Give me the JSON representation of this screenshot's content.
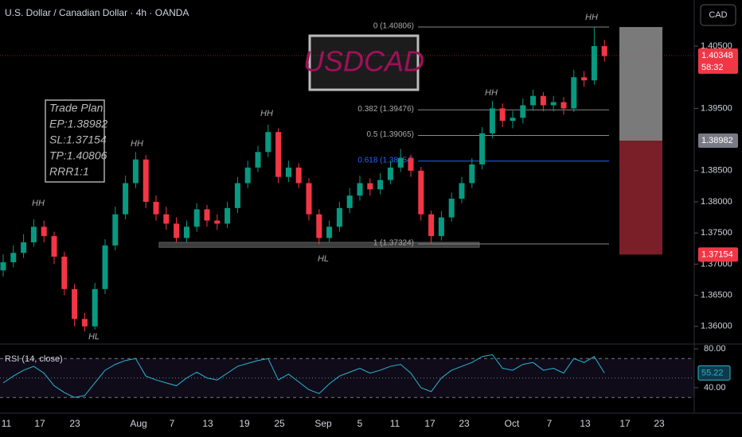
{
  "chart_data": {
    "type": "candlestick",
    "title": "U.S. Dollar / Canadian Dollar · 4h · OANDA",
    "symbol": "USDCAD",
    "currency": "CAD",
    "x_labels": [
      "11",
      "17",
      "23",
      "Aug",
      "7",
      "13",
      "19",
      "25",
      "Sep",
      "5",
      "11",
      "17",
      "23",
      "Oct",
      "7",
      "13",
      "17",
      "23"
    ],
    "open": [
      1.369,
      1.3703,
      1.3718,
      1.3735,
      1.376,
      1.3745,
      1.3712,
      1.366,
      1.3612,
      1.36,
      1.366,
      1.373,
      1.378,
      1.383,
      1.3868,
      1.38,
      1.378,
      1.3765,
      1.3742,
      1.376,
      1.3788,
      1.377,
      1.3765,
      1.379,
      1.383,
      1.3855,
      1.388,
      1.3912,
      1.384,
      1.3855,
      1.383,
      1.378,
      1.3742,
      1.376,
      1.379,
      1.381,
      1.383,
      1.382,
      1.3835,
      1.3855,
      1.387,
      1.385,
      1.378,
      1.3745,
      1.3775,
      1.3805,
      1.383,
      1.386,
      1.391,
      1.395,
      1.393,
      1.3935,
      1.3955,
      1.397,
      1.3955,
      1.396,
      1.395,
      1.4,
      1.3995,
      1.405
    ],
    "high": [
      1.3716,
      1.373,
      1.3748,
      1.3772,
      1.377,
      1.3752,
      1.372,
      1.3668,
      1.3622,
      1.367,
      1.374,
      1.3792,
      1.3842,
      1.388,
      1.3875,
      1.381,
      1.3792,
      1.3775,
      1.377,
      1.3798,
      1.3795,
      1.378,
      1.38,
      1.384,
      1.3866,
      1.389,
      1.3924,
      1.3918,
      1.3866,
      1.3862,
      1.3838,
      1.3788,
      1.377,
      1.38,
      1.3822,
      1.3842,
      1.3838,
      1.3846,
      1.3866,
      1.3885,
      1.3876,
      1.3856,
      1.3786,
      1.3785,
      1.3815,
      1.384,
      1.387,
      1.392,
      1.3962,
      1.3958,
      1.3946,
      1.3966,
      1.398,
      1.3976,
      1.397,
      1.3968,
      1.4012,
      1.401,
      1.4081,
      1.406
    ],
    "low": [
      1.368,
      1.3695,
      1.371,
      1.3728,
      1.3735,
      1.37,
      1.365,
      1.36,
      1.3592,
      1.3595,
      1.3652,
      1.3722,
      1.3772,
      1.3822,
      1.379,
      1.377,
      1.3755,
      1.3735,
      1.3735,
      1.3752,
      1.376,
      1.3755,
      1.3758,
      1.3782,
      1.3822,
      1.3848,
      1.3872,
      1.383,
      1.3832,
      1.3822,
      1.377,
      1.3732,
      1.3735,
      1.3752,
      1.3782,
      1.3802,
      1.381,
      1.3812,
      1.3828,
      1.3848,
      1.384,
      1.377,
      1.3732,
      1.3738,
      1.3768,
      1.3798,
      1.3822,
      1.3852,
      1.3902,
      1.392,
      1.3918,
      1.3926,
      1.3946,
      1.3945,
      1.3945,
      1.394,
      1.3944,
      1.3985,
      1.3988,
      1.4025
    ],
    "close": [
      1.3703,
      1.3718,
      1.3735,
      1.376,
      1.3745,
      1.3712,
      1.366,
      1.3612,
      1.36,
      1.366,
      1.373,
      1.378,
      1.383,
      1.3868,
      1.38,
      1.378,
      1.3765,
      1.3742,
      1.376,
      1.3788,
      1.377,
      1.3765,
      1.379,
      1.383,
      1.3855,
      1.388,
      1.3912,
      1.384,
      1.3855,
      1.383,
      1.378,
      1.3742,
      1.376,
      1.379,
      1.381,
      1.383,
      1.382,
      1.3835,
      1.3855,
      1.387,
      1.385,
      1.378,
      1.3745,
      1.3775,
      1.3805,
      1.383,
      1.386,
      1.391,
      1.395,
      1.393,
      1.3935,
      1.3955,
      1.397,
      1.3955,
      1.396,
      1.395,
      1.4,
      1.3995,
      1.405,
      1.4034
    ],
    "up_color": "#089981",
    "down_color": "#f23645",
    "ylim": [
      1.3573,
      1.4124
    ],
    "yticks": [
      {
        "value": 1.405,
        "label": "1.40500"
      },
      {
        "value": 1.395,
        "label": "1.39500"
      },
      {
        "value": 1.385,
        "label": "1.38500"
      },
      {
        "value": 1.38,
        "label": "1.38000"
      },
      {
        "value": 1.375,
        "label": "1.37500"
      },
      {
        "value": 1.37,
        "label": "1.37000"
      },
      {
        "value": 1.365,
        "label": "1.36500"
      },
      {
        "value": 1.36,
        "label": "1.36000"
      }
    ],
    "last_price": 1.40348,
    "countdown": "58:32",
    "fib": [
      {
        "label": "0 (1.40806)",
        "value": 1.40806
      },
      {
        "label": "0.382 (1.39476)",
        "value": 1.39476
      },
      {
        "label": "0.5 (1.39065)",
        "value": 1.39065
      },
      {
        "label": "0.618 (1.38654)",
        "value": 1.38654
      },
      {
        "label": "1 (1.37324)",
        "value": 1.37324
      }
    ],
    "support_zone": [
      1.3727,
      1.3735
    ],
    "trade": {
      "lines": [
        "Trade Plan.",
        "EP:1.38982",
        "SL:1.37154",
        "TP:1.40806",
        "RRR1:1"
      ],
      "entry": 1.38982,
      "stop": 1.37154,
      "target": 1.40806
    },
    "annotations": [
      "HH",
      "HH",
      "HH",
      "HL",
      "HL",
      "HH",
      "HH"
    ],
    "rsi": {
      "title": "RSI (14, close)",
      "color": "#2ab7d6",
      "values": [
        45,
        52,
        58,
        62,
        55,
        42,
        35,
        30,
        32,
        45,
        58,
        64,
        68,
        70,
        52,
        48,
        45,
        42,
        50,
        56,
        50,
        48,
        55,
        62,
        65,
        68,
        70,
        48,
        54,
        46,
        38,
        34,
        44,
        52,
        56,
        60,
        55,
        58,
        62,
        64,
        55,
        40,
        36,
        50,
        58,
        62,
        66,
        72,
        74,
        60,
        58,
        64,
        66,
        58,
        60,
        55,
        70,
        66,
        72,
        55.22
      ],
      "ylim": [
        22,
        83.3
      ],
      "yticks": [
        {
          "value": 80,
          "label": "80.00"
        },
        {
          "value": 40,
          "label": "40.00"
        }
      ],
      "levels": [
        70,
        50,
        30
      ]
    }
  }
}
